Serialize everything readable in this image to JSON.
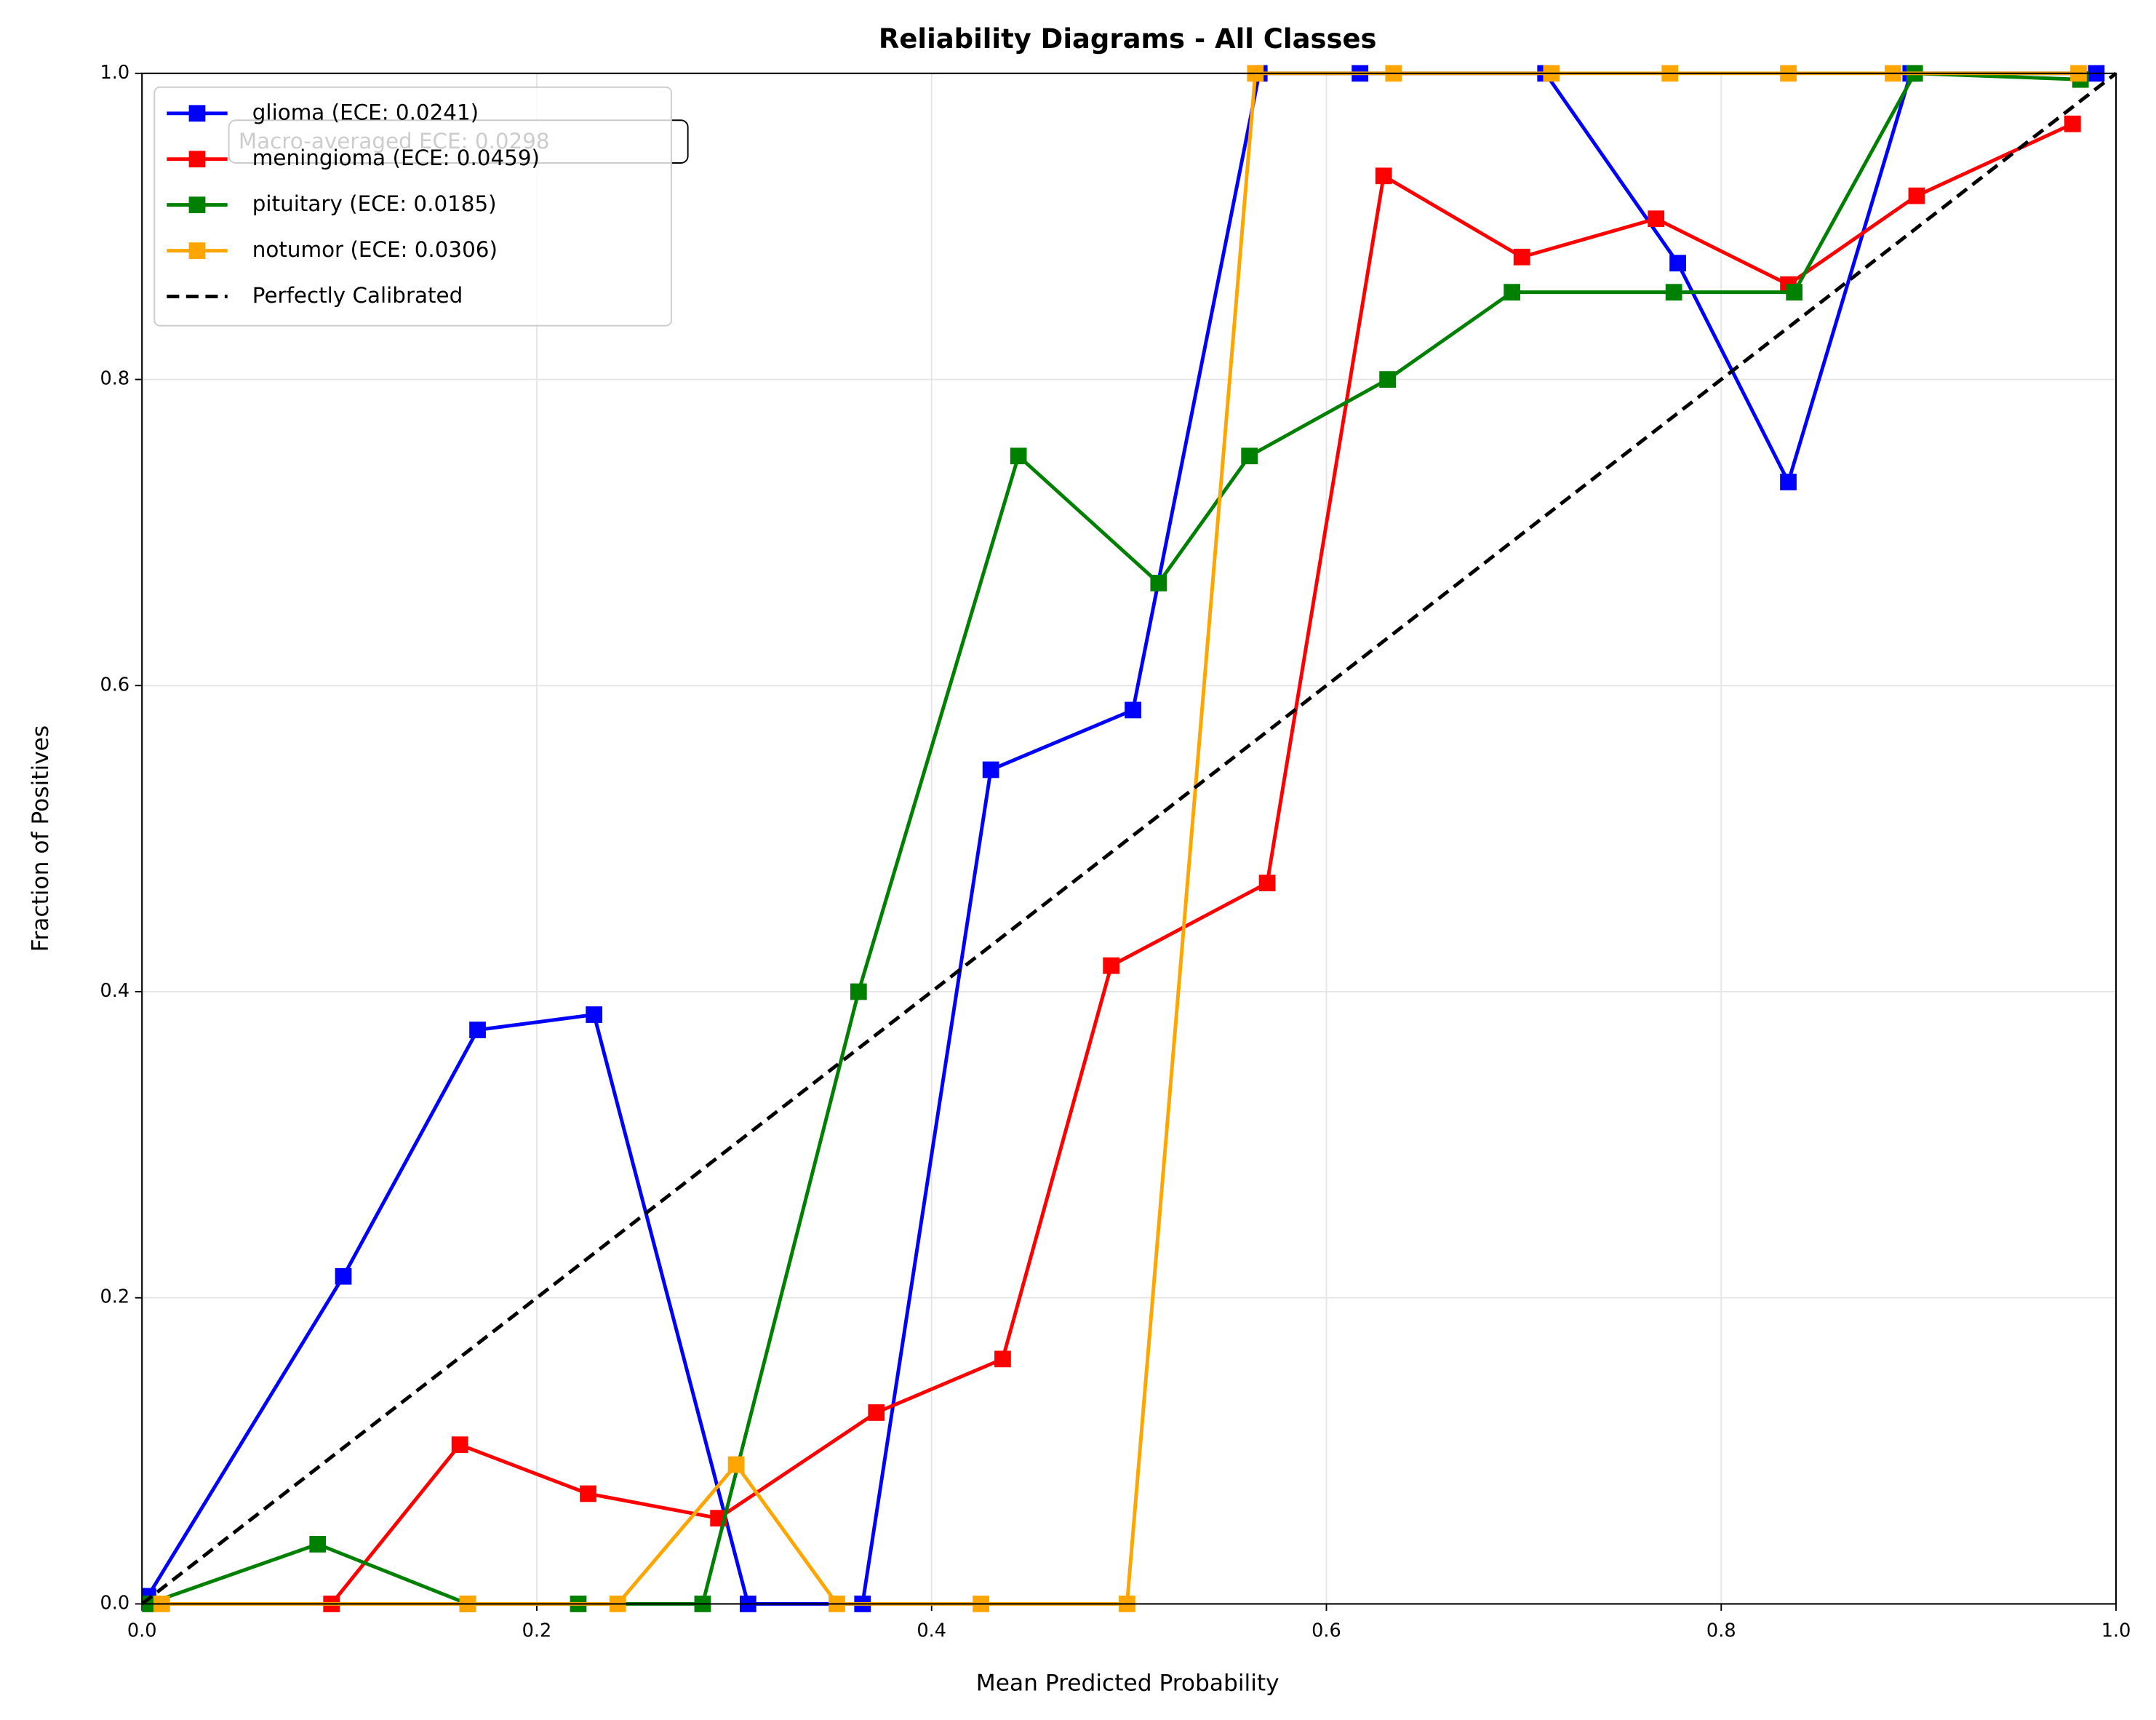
{
  "chart_data": {
    "type": "line",
    "title": "Reliability Diagrams - All Classes",
    "xlabel": "Mean Predicted Probability",
    "ylabel": "Fraction of Positives",
    "annotation": "Macro-averaged ECE: 0.0298",
    "xlim": [
      0,
      1
    ],
    "ylim": [
      0,
      1
    ],
    "xticks": [
      {
        "value": 0,
        "label": "0.0"
      },
      {
        "value": 0.2,
        "label": "0.2"
      },
      {
        "value": 0.4,
        "label": "0.4"
      },
      {
        "value": 0.6,
        "label": "0.6"
      },
      {
        "value": 0.8,
        "label": "0.8"
      },
      {
        "value": 1,
        "label": "1.0"
      }
    ],
    "yticks": [
      {
        "value": 0,
        "label": "0.0"
      },
      {
        "value": 0.2,
        "label": "0.2"
      },
      {
        "value": 0.4,
        "label": "0.4"
      },
      {
        "value": 0.6,
        "label": "0.6"
      },
      {
        "value": 0.8,
        "label": "0.8"
      },
      {
        "value": 1,
        "label": "1.0"
      }
    ],
    "grid": true,
    "legend": "upper left",
    "series": [
      {
        "name": "glioma (ECE: 0.0241)",
        "color": "#0000ff",
        "marker": "square",
        "x": [
          0.003,
          0.102,
          0.17,
          0.229,
          0.307,
          0.365,
          0.43,
          0.502,
          0.566,
          0.617,
          0.711,
          0.778,
          0.834,
          0.896,
          0.99
        ],
        "values": [
          0.005,
          0.214,
          0.375,
          0.385,
          0,
          0,
          0.545,
          0.584,
          1.0,
          1.0,
          1.0,
          0.876,
          0.733,
          1.0,
          1.0
        ]
      },
      {
        "name": "meningioma (ECE: 0.0459)",
        "color": "#ff0000",
        "marker": "square",
        "x": [
          0.096,
          0.161,
          0.226,
          0.292,
          0.372,
          0.436,
          0.491,
          0.57,
          0.629,
          0.699,
          0.767,
          0.834,
          0.899,
          0.978
        ],
        "values": [
          0,
          0.104,
          0.072,
          0.056,
          0.125,
          0.16,
          0.417,
          0.471,
          0.933,
          0.88,
          0.905,
          0.862,
          0.92,
          0.967
        ]
      },
      {
        "name": "pituitary (ECE: 0.0185)",
        "color": "#008000",
        "marker": "square",
        "x": [
          0.003,
          0.089,
          0.165,
          0.221,
          0.284,
          0.363,
          0.444,
          0.515,
          0.561,
          0.631,
          0.694,
          0.776,
          0.837,
          0.898,
          0.982
        ],
        "values": [
          0,
          0.039,
          0,
          0,
          0,
          0.4,
          0.75,
          0.667,
          0.75,
          0.8,
          0.857,
          0.857,
          0.857,
          1.0,
          0.996
        ]
      },
      {
        "name": "notumor (ECE: 0.0306)",
        "color": "#ffa500",
        "marker": "square",
        "x": [
          0.01,
          0.165,
          0.241,
          0.301,
          0.352,
          0.425,
          0.499,
          0.564,
          0.634,
          0.714,
          0.774,
          0.834,
          0.887,
          0.981
        ],
        "values": [
          0,
          0,
          0,
          0.091,
          0,
          0,
          0,
          1.0,
          1.0,
          1.0,
          1.0,
          1.0,
          1.0,
          1.0
        ]
      },
      {
        "name": "Perfectly Calibrated",
        "color": "#000000",
        "linestyle": "dashed",
        "x": [
          0,
          1
        ],
        "values": [
          0,
          1
        ]
      }
    ]
  }
}
